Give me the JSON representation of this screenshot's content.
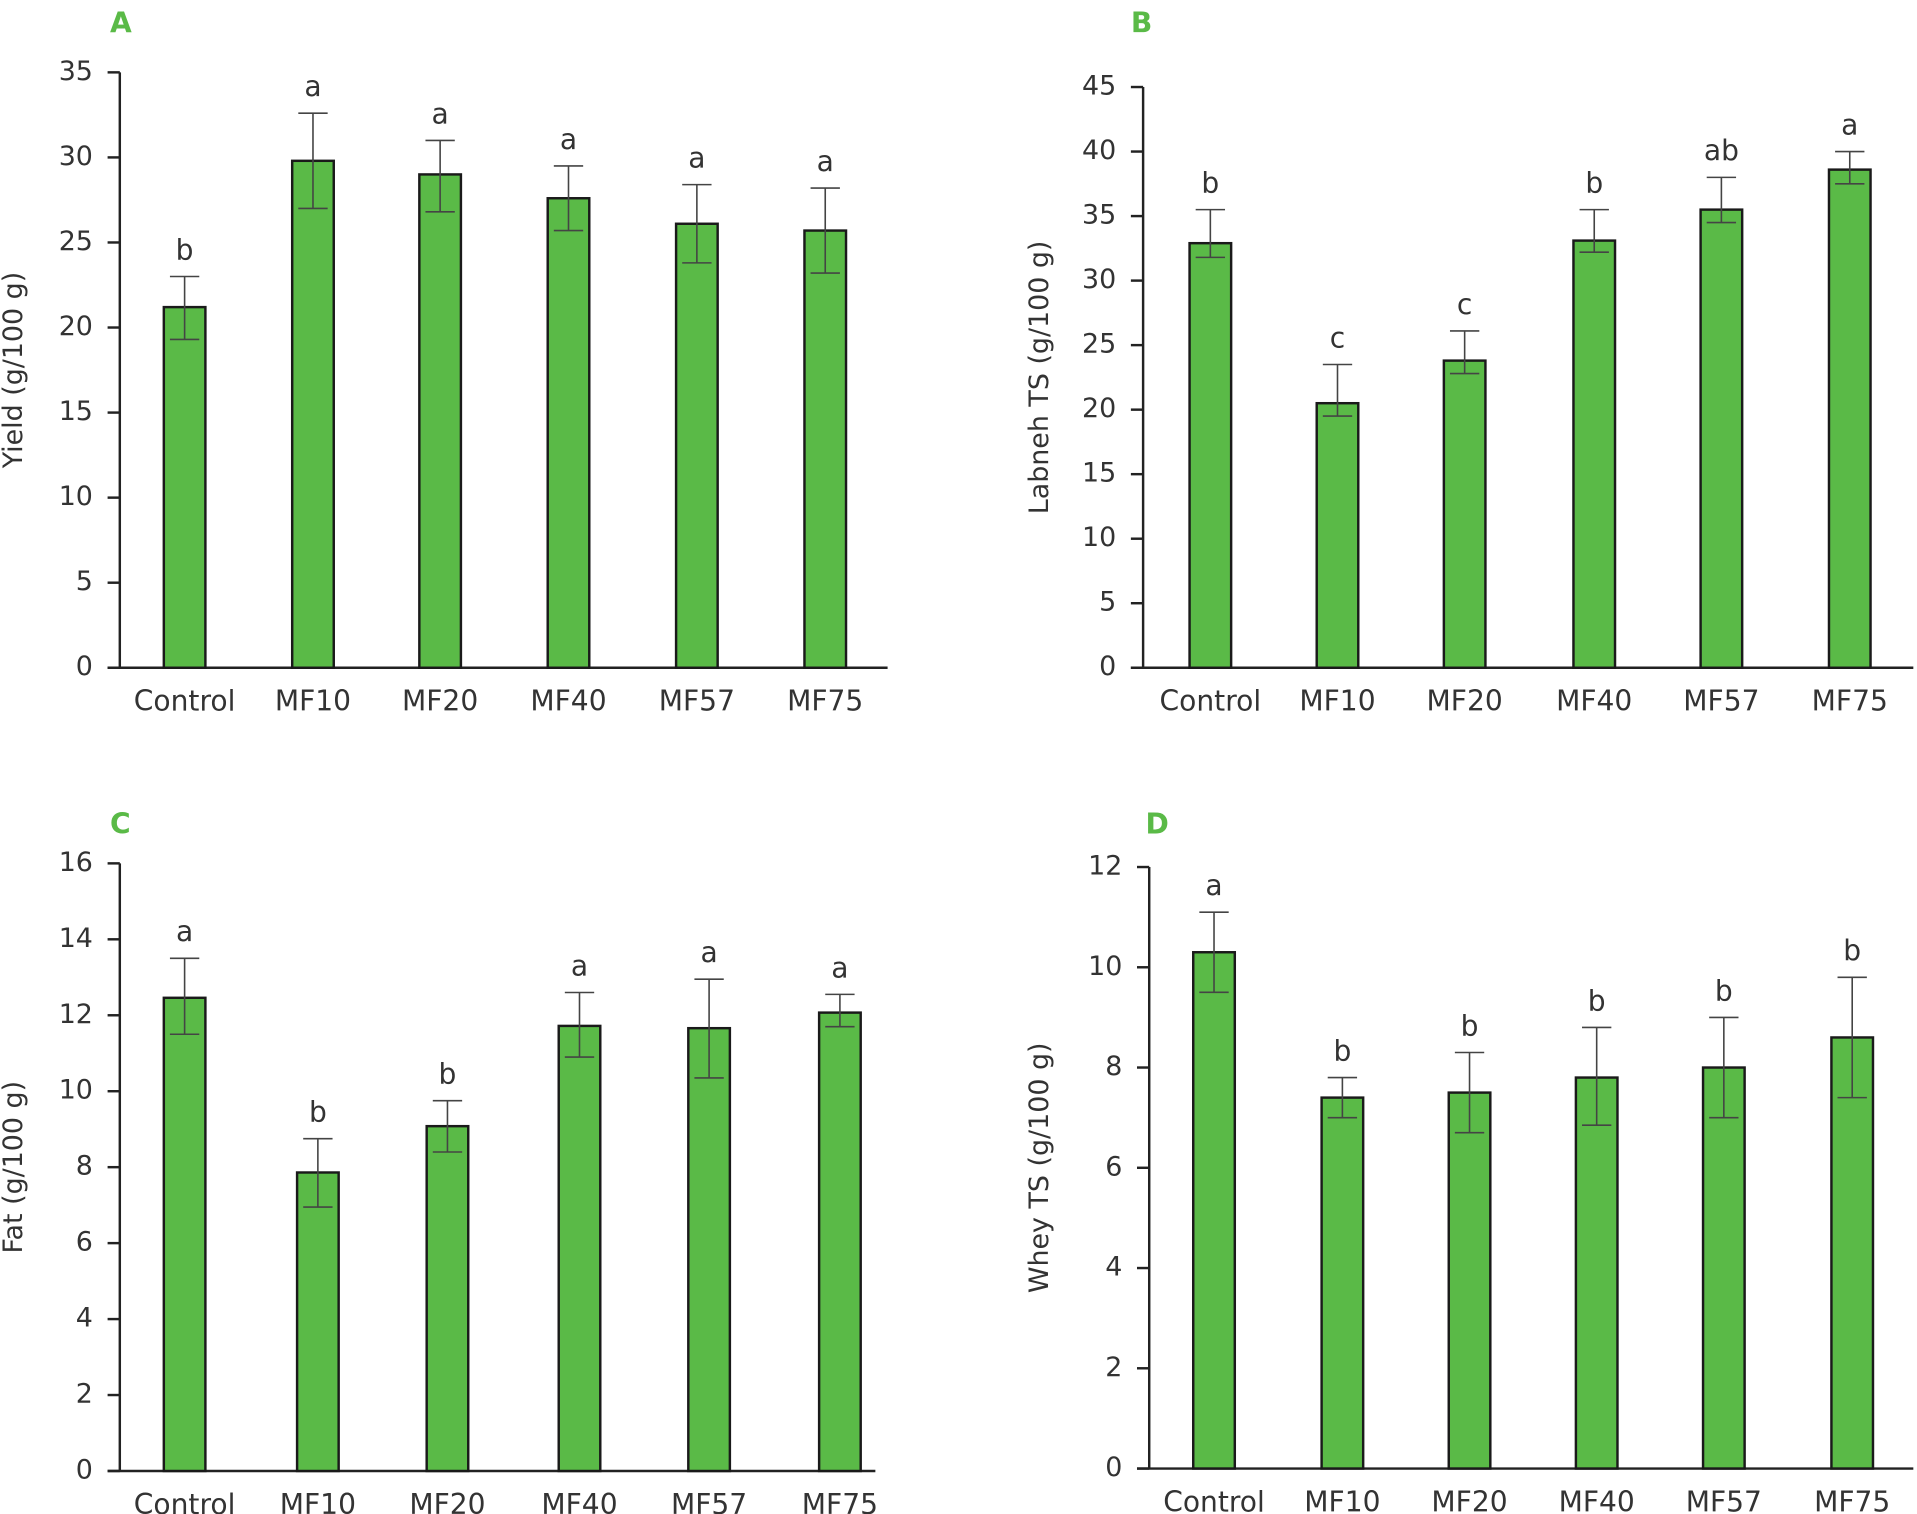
{
  "colors": {
    "bar": "#5aba47",
    "panel_label": "#5aba47",
    "axis": "#222222"
  },
  "chart_data": [
    {
      "type": "bar",
      "panel": "A",
      "ylabel": "Yield (g/100 g)",
      "ylim": [
        0,
        35
      ],
      "yticks": [
        0,
        5,
        10,
        15,
        20,
        25,
        30,
        35
      ],
      "categories": [
        "Control",
        "MF10",
        "MF20",
        "MF40",
        "MF57",
        "MF75"
      ],
      "values": [
        21.2,
        29.8,
        29.0,
        27.6,
        26.1,
        25.7
      ],
      "err_low": [
        19.3,
        27.0,
        26.8,
        25.7,
        23.8,
        23.2
      ],
      "err_high": [
        23.0,
        32.6,
        31.0,
        29.5,
        28.4,
        28.2
      ],
      "letters": [
        "b",
        "a",
        "a",
        "a",
        "a",
        "a"
      ]
    },
    {
      "type": "bar",
      "panel": "B",
      "ylabel": "Labneh TS (g/100 g)",
      "ylim": [
        0,
        45
      ],
      "yticks": [
        0,
        5,
        10,
        15,
        20,
        25,
        30,
        35,
        40,
        45
      ],
      "categories": [
        "Control",
        "MF10",
        "MF20",
        "MF40",
        "MF57",
        "MF75"
      ],
      "values": [
        32.9,
        20.5,
        23.8,
        33.1,
        35.5,
        38.6
      ],
      "err_low": [
        31.8,
        19.5,
        22.8,
        32.2,
        34.5,
        37.5
      ],
      "err_high": [
        35.5,
        23.5,
        26.1,
        35.5,
        38.0,
        40.0
      ],
      "letters": [
        "b",
        "c",
        "c",
        "b",
        "ab",
        "a"
      ]
    },
    {
      "type": "bar",
      "panel": "C",
      "ylabel": "Fat (g/100 g)",
      "ylim": [
        0,
        16
      ],
      "yticks": [
        0,
        2,
        4,
        6,
        8,
        10,
        12,
        14,
        16
      ],
      "categories": [
        "Control",
        "MF10",
        "MF20",
        "MF40",
        "MF57",
        "MF75"
      ],
      "values": [
        12.46,
        7.86,
        9.08,
        11.72,
        11.66,
        12.07
      ],
      "err_low": [
        11.5,
        6.95,
        8.4,
        10.9,
        10.35,
        11.7
      ],
      "err_high": [
        13.5,
        8.75,
        9.75,
        12.6,
        12.95,
        12.55
      ],
      "letters": [
        "a",
        "b",
        "b",
        "a",
        "a",
        "a"
      ]
    },
    {
      "type": "bar",
      "panel": "D",
      "ylabel": "Whey TS (g/100 g)",
      "ylim": [
        0,
        12
      ],
      "yticks": [
        0,
        2,
        4,
        6,
        8,
        10,
        12
      ],
      "categories": [
        "Control",
        "MF10",
        "MF20",
        "MF40",
        "MF57",
        "MF75"
      ],
      "values": [
        10.3,
        7.4,
        7.5,
        7.8,
        8.0,
        8.6
      ],
      "err_low": [
        9.5,
        7.0,
        6.7,
        6.85,
        7.0,
        7.4
      ],
      "err_high": [
        11.1,
        7.8,
        8.3,
        8.8,
        9.0,
        9.8
      ],
      "letters": [
        "a",
        "b",
        "b",
        "b",
        "b",
        "b"
      ]
    }
  ]
}
